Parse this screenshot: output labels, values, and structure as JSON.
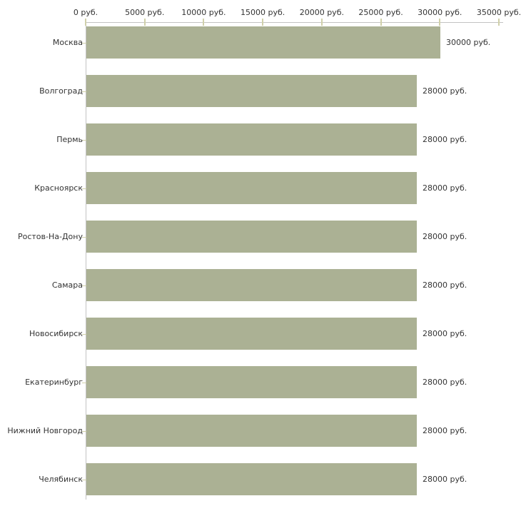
{
  "chart_data": {
    "type": "bar",
    "orientation": "horizontal",
    "title": "",
    "unit": "руб.",
    "categories": [
      "Москва",
      "Волгоград",
      "Пермь",
      "Красноярск",
      "Ростов-На-Дону",
      "Самара",
      "Новосибирск",
      "Екатеринбург",
      "Нижний Новгород",
      "Челябинск"
    ],
    "values": [
      30000,
      28000,
      28000,
      28000,
      28000,
      28000,
      28000,
      28000,
      28000,
      28000
    ],
    "value_labels": [
      "30000 руб.",
      "28000 руб.",
      "28000 руб.",
      "28000 руб.",
      "28000 руб.",
      "28000 руб.",
      "28000 руб.",
      "28000 руб.",
      "28000 руб.",
      "28000 руб."
    ],
    "x_axis": {
      "position": "top",
      "range": [
        0,
        35000
      ],
      "tick_values": [
        0,
        5000,
        10000,
        15000,
        20000,
        25000,
        30000,
        35000
      ],
      "tick_labels": [
        "0 руб.",
        "5000 руб.",
        "10000 руб.",
        "15000 руб.",
        "20000 руб.",
        "25000 руб.",
        "30000 руб.",
        "35000 руб."
      ]
    },
    "legend": null,
    "grid": false,
    "colors": {
      "bar": "#abb194",
      "axis_line": "#c3c3c3",
      "tick": "#d0d0aa",
      "text": "#333333",
      "background": "#ffffff"
    }
  }
}
